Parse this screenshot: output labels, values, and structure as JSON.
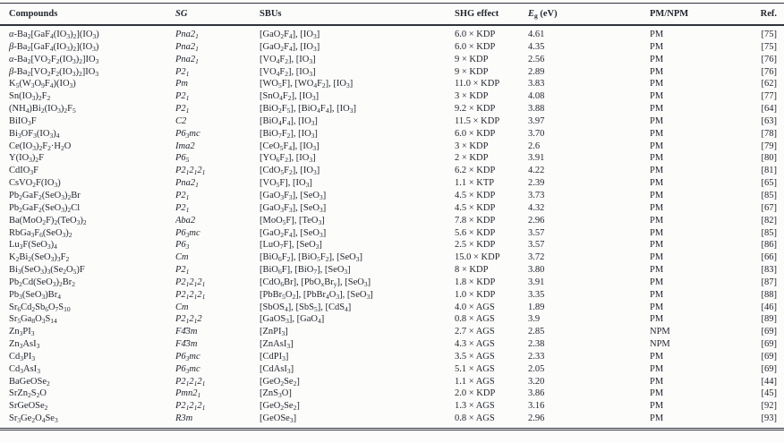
{
  "table": {
    "columns": [
      {
        "key": "compound",
        "label": "Compounds"
      },
      {
        "key": "sg",
        "label": "SG"
      },
      {
        "key": "sbus",
        "label": "SBUs"
      },
      {
        "key": "shg",
        "label": "SHG effect"
      },
      {
        "key": "eg",
        "label": "*E*~g~ (eV)"
      },
      {
        "key": "pm",
        "label": "PM/NPM"
      },
      {
        "key": "ref",
        "label": "Ref."
      }
    ],
    "rows": [
      {
        "compound": "*α*-Ba~2~[GaF~4~(IO~3~)~2~](IO~3~)",
        "sg": "Pna2~1~",
        "sbus": "[GaO~2~F~4~], [IO~3~]",
        "shg": "6.0 × KDP",
        "eg": "4.61",
        "pm": "PM",
        "ref": "[75]"
      },
      {
        "compound": "*β*-Ba~2~[GaF~4~(IO~3~)~2~](IO~3~)",
        "sg": "Pna2~1~",
        "sbus": "[GaO~2~F~4~], [IO~3~]",
        "shg": "6.0 × KDP",
        "eg": "4.35",
        "pm": "PM",
        "ref": "[75]"
      },
      {
        "compound": "*α*-Ba~2~[VO~2~F~2~(IO~3~)~2~]IO~3~",
        "sg": "Pna2~1~",
        "sbus": "[VO~4~F~2~], [IO~3~]",
        "shg": "9 × KDP",
        "eg": "2.56",
        "pm": "PM",
        "ref": "[76]"
      },
      {
        "compound": "*β*-Ba~2~[VO~2~F~2~(IO~3~)~2~]IO~3~",
        "sg": "P2~1~",
        "sbus": "[VO~4~F~2~], [IO~3~]",
        "shg": "9 × KDP",
        "eg": "2.89",
        "pm": "PM",
        "ref": "[76]"
      },
      {
        "compound": "K~5~(W~3~O~9~F~4~)(IO~3~)",
        "sg": "Pm",
        "sbus": "[WO~5~F], [WO~4~F~2~], [IO~3~]",
        "shg": "11.0 × KDP",
        "eg": "3.83",
        "pm": "PM",
        "ref": "[62]"
      },
      {
        "compound": "Sn(IO~3~)~2~F~2~",
        "sg": "P2~1~",
        "sbus": "[SnO~4~F~2~], [IO~3~]",
        "shg": "3 × KDP",
        "eg": "4.08",
        "pm": "PM",
        "ref": "[77]"
      },
      {
        "compound": "(NH~4~)Bi~2~(IO~3~)~2~F~5~",
        "sg": "P2~1~",
        "sbus": "[BiO~2~F~5~], [BiO~4~F~4~], [IO~3~]",
        "shg": "9.2 × KDP",
        "eg": "3.88",
        "pm": "PM",
        "ref": "[64]"
      },
      {
        "compound": "BiIO~3~F",
        "sg": "C2",
        "sbus": "[BiO~4~F~4~], [IO~3~]",
        "shg": "11.5 × KDP",
        "eg": "3.97",
        "pm": "PM",
        "ref": "[63]"
      },
      {
        "compound": "Bi~3~OF~3~(IO~3~)~4~",
        "sg": "P6~3~mc",
        "sbus": "[BiO~7~F~2~], [IO~3~]",
        "shg": "6.0 × KDP",
        "eg": "3.70",
        "pm": "PM",
        "ref": "[78]"
      },
      {
        "compound": "Ce(IO~3~)~2~F~2~·H~2~O",
        "sg": "Ima2",
        "sbus": "[CeO~5~F~4~], [IO~3~]",
        "shg": "3 × KDP",
        "eg": "2.6",
        "pm": "PM",
        "ref": "[79]"
      },
      {
        "compound": "Y(IO~3~)~2~F",
        "sg": "P6~5~",
        "sbus": "[YO~6~F~2~], [IO~3~]",
        "shg": "2 × KDP",
        "eg": "3.91",
        "pm": "PM",
        "ref": "[80]"
      },
      {
        "compound": "CdIO~3~F",
        "sg": "P2~1~2~1~2~1~",
        "sbus": "[CdO~5~F~2~], [IO~3~]",
        "shg": "6.2 × KDP",
        "eg": "4.22",
        "pm": "PM",
        "ref": "[81]"
      },
      {
        "compound": "CsVO~2~F(IO~3~)",
        "sg": "Pna2~1~",
        "sbus": "[VO~5~F], [IO~3~]",
        "shg": "1.1 × KTP",
        "eg": "2.39",
        "pm": "PM",
        "ref": "[65]"
      },
      {
        "compound": "Pb~2~GaF~2~(SeO~3~)~2~Br",
        "sg": "P2~1~",
        "sbus": "[GaO~3~F~3~], [SeO~3~]",
        "shg": "4.5 × KDP",
        "eg": "3.73",
        "pm": "PM",
        "ref": "[85]"
      },
      {
        "compound": "Pb~2~GaF~2~(SeO~3~)~2~Cl",
        "sg": "P2~1~",
        "sbus": "[GaO~3~F~3~], [SeO~3~]",
        "shg": "4.5 × KDP",
        "eg": "4.32",
        "pm": "PM",
        "ref": "[67]"
      },
      {
        "compound": "Ba(MoO~2~F)~2~(TeO~3~)~2~",
        "sg": "Aba2",
        "sbus": "[MoO~5~F], [TeO~3~]",
        "shg": "7.8 × KDP",
        "eg": "2.96",
        "pm": "PM",
        "ref": "[82]"
      },
      {
        "compound": "RbGa~3~F~6~(SeO~3~)~2~",
        "sg": "P6~3~mc",
        "sbus": "[GaO~2~F~4~], [SeO~3~]",
        "shg": "5.6 × KDP",
        "eg": "3.57",
        "pm": "PM",
        "ref": "[85]"
      },
      {
        "compound": "Lu~3~F(SeO~3~)~4~",
        "sg": "P6~3~",
        "sbus": "[LuO~7~F], [SeO~3~]",
        "shg": "2.5 × KDP",
        "eg": "3.57",
        "pm": "PM",
        "ref": "[86]"
      },
      {
        "compound": "K~2~Bi~2~(SeO~3~)~3~F~2~",
        "sg": "Cm",
        "sbus": "[BiO~6~F~2~], [BiO~5~F~2~], [SeO~3~]",
        "shg": "15.0 × KDP",
        "eg": "3.72",
        "pm": "PM",
        "ref": "[66]"
      },
      {
        "compound": "Bi~3~(SeO~3~)~3~(Se~2~O~5~)F",
        "sg": "P2~1~",
        "sbus": "[BiO~6~F], [BiO~7~], [SeO~3~]",
        "shg": "8 × KDP",
        "eg": "3.80",
        "pm": "PM",
        "ref": "[83]"
      },
      {
        "compound": "Pb~2~Cd(SeO~3~)~2~Br~2~",
        "sg": "P2~1~2~1~2~1~",
        "sbus": "[CdO~6~Br], [PbO~x~Br~y~], [SeO~3~]",
        "shg": "1.8 × KDP",
        "eg": "3.91",
        "pm": "PM",
        "ref": "[87]"
      },
      {
        "compound": "Pb~3~(SeO~3~)Br~4~",
        "sg": "P2~1~2~1~2~1~",
        "sbus": "[PbBr~5~O~2~], [PbBr~4~O~3~], [SeO~3~]",
        "shg": "1.0 × KDP",
        "eg": "3.35",
        "pm": "PM",
        "ref": "[88]"
      },
      {
        "compound": "Sr~6~Cd~2~Sb~6~O~7~S~10~",
        "sg": "Cm",
        "sbus": "[SbOS~4~], [SbS~5~], [CdS~4~]",
        "shg": "4.0 × AGS",
        "eg": "1.89",
        "pm": "PM",
        "ref": "[46]"
      },
      {
        "compound": "Sr~5~Ga~8~O~3~S~14~",
        "sg": "P2~1~2~1~2",
        "sbus": "[GaOS~3~], [GaO~4~]",
        "shg": "0.8 × AGS",
        "eg": "3.9",
        "pm": "PM",
        "ref": "[89]"
      },
      {
        "compound": "Zn~3~PI~3~",
        "sg": "F4̄3m",
        "sbus": "[ZnPI~3~]",
        "shg": "2.7 × AGS",
        "eg": "2.85",
        "pm": "NPM",
        "ref": "[69]"
      },
      {
        "compound": "Zn~3~AsI~3~",
        "sg": "F4̄3m",
        "sbus": "[ZnAsI~3~]",
        "shg": "4.3 × AGS",
        "eg": "2.38",
        "pm": "NPM",
        "ref": "[69]"
      },
      {
        "compound": "Cd~3~PI~3~",
        "sg": "P6~3~mc",
        "sbus": "[CdPI~3~]",
        "shg": "3.5 × AGS",
        "eg": "2.33",
        "pm": "PM",
        "ref": "[69]"
      },
      {
        "compound": "Cd~3~AsI~3~",
        "sg": "P6~3~mc",
        "sbus": "[CdAsI~3~]",
        "shg": "5.1 × AGS",
        "eg": "2.05",
        "pm": "PM",
        "ref": "[69]"
      },
      {
        "compound": "BaGeOSe~2~",
        "sg": "P2~1~2~1~2~1~",
        "sbus": "[GeO~2~Se~2~]",
        "shg": "1.1 × AGS",
        "eg": "3.20",
        "pm": "PM",
        "ref": "[44]"
      },
      {
        "compound": "SrZn~2~S~2~O",
        "sg": "Pmn2~1~",
        "sbus": "[ZnS~3~O]",
        "shg": "2.0 × KDP",
        "eg": "3.86",
        "pm": "PM",
        "ref": "[45]"
      },
      {
        "compound": "SrGeOSe~2~",
        "sg": "P2~1~2~1~2~1~",
        "sbus": "[GeO~2~Se~2~]",
        "shg": "1.3 × AGS",
        "eg": "3.16",
        "pm": "PM",
        "ref": "[92]"
      },
      {
        "compound": "Sr~3~Ge~2~O~4~Se~3~",
        "sg": "R3m",
        "sbus": "[GeOSe~3~]",
        "shg": "0.8 × AGS",
        "eg": "2.96",
        "pm": "PM",
        "ref": "[93]"
      }
    ]
  }
}
